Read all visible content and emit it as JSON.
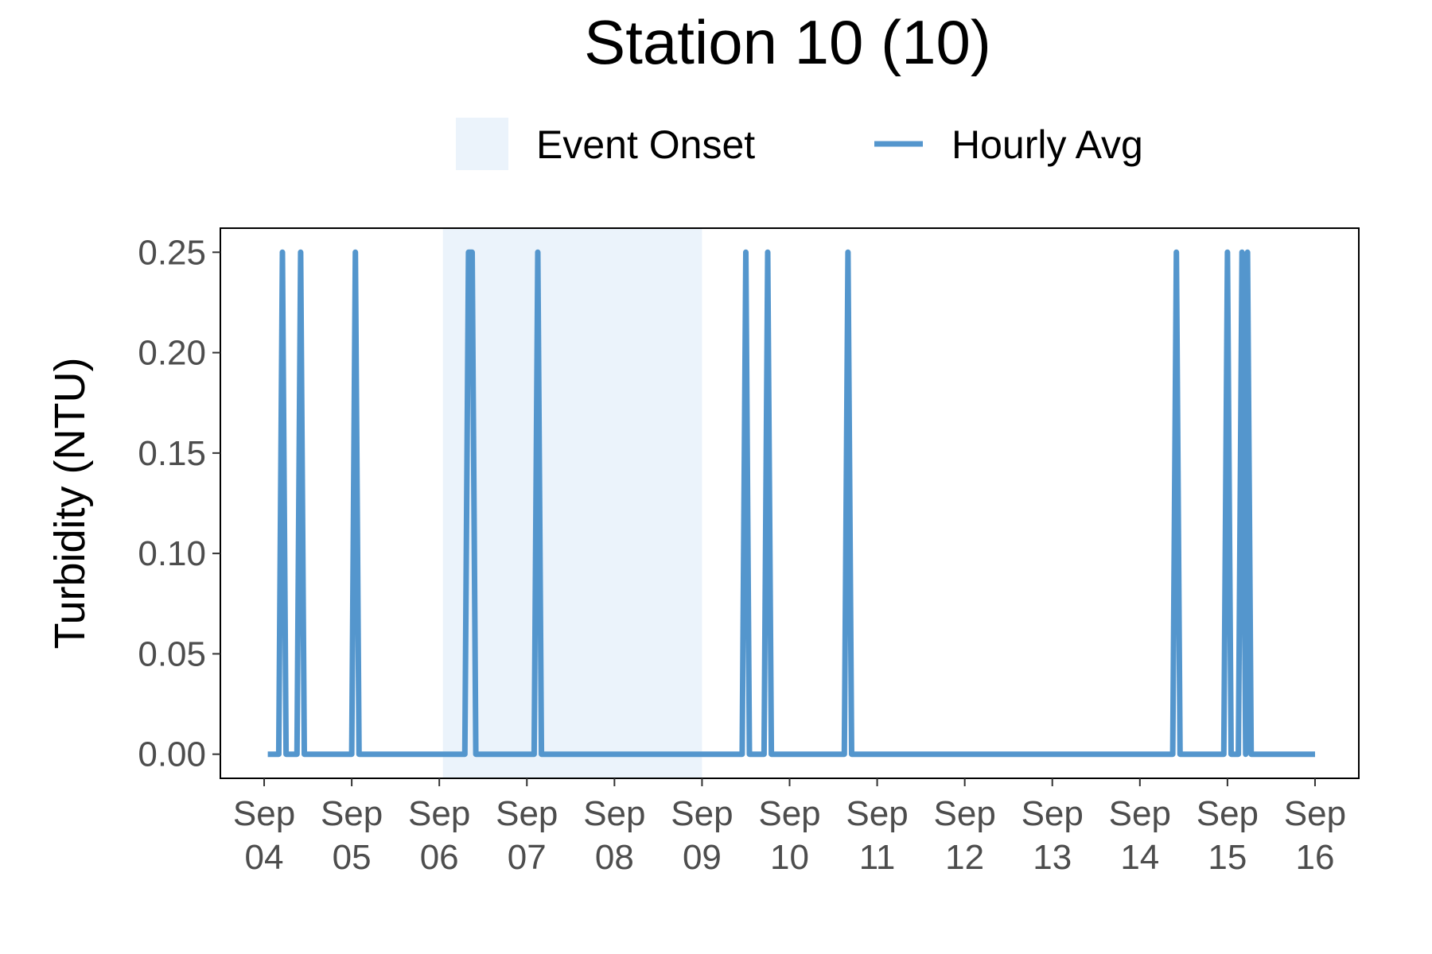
{
  "chart_data": {
    "type": "line",
    "title": "Station 10 (10)",
    "xlabel": "",
    "ylabel": "Turbidity (NTU)",
    "xlim": [
      "2023-09-03T12:00",
      "2023-09-16T12:00"
    ],
    "ylim": [
      -0.012,
      0.262
    ],
    "grid": false,
    "legend_position": "top",
    "legend": [
      {
        "name": "Event Onset",
        "kind": "band",
        "color": "#ebf3fb"
      },
      {
        "name": "Hourly Avg",
        "kind": "line",
        "color": "#5496cd"
      }
    ],
    "yticks": [
      {
        "value": 0.0,
        "label": "0.00"
      },
      {
        "value": 0.05,
        "label": "0.05"
      },
      {
        "value": 0.1,
        "label": "0.10"
      },
      {
        "value": 0.15,
        "label": "0.15"
      },
      {
        "value": 0.2,
        "label": "0.20"
      },
      {
        "value": 0.25,
        "label": "0.25"
      }
    ],
    "xticks": [
      {
        "value": "2023-09-04",
        "label": [
          "Sep",
          "04"
        ]
      },
      {
        "value": "2023-09-05",
        "label": [
          "Sep",
          "05"
        ]
      },
      {
        "value": "2023-09-06",
        "label": [
          "Sep",
          "06"
        ]
      },
      {
        "value": "2023-09-07",
        "label": [
          "Sep",
          "07"
        ]
      },
      {
        "value": "2023-09-08",
        "label": [
          "Sep",
          "08"
        ]
      },
      {
        "value": "2023-09-09",
        "label": [
          "Sep",
          "09"
        ]
      },
      {
        "value": "2023-09-10",
        "label": [
          "Sep",
          "10"
        ]
      },
      {
        "value": "2023-09-11",
        "label": [
          "Sep",
          "11"
        ]
      },
      {
        "value": "2023-09-12",
        "label": [
          "Sep",
          "12"
        ]
      },
      {
        "value": "2023-09-13",
        "label": [
          "Sep",
          "13"
        ]
      },
      {
        "value": "2023-09-14",
        "label": [
          "Sep",
          "14"
        ]
      },
      {
        "value": "2023-09-15",
        "label": [
          "Sep",
          "15"
        ]
      },
      {
        "value": "2023-09-16",
        "label": [
          "Sep",
          "16"
        ]
      }
    ],
    "event_band": {
      "name": "Event Onset",
      "start": "2023-09-06T01:00",
      "end": "2023-09-09T00:00",
      "color": "#ebf3fb"
    },
    "series": [
      {
        "name": "Hourly Avg",
        "color": "#5496cd",
        "points": [
          [
            "2023-09-04T01:00",
            0.0
          ],
          [
            "2023-09-04T04:00",
            0.0
          ],
          [
            "2023-09-04T05:00",
            0.25
          ],
          [
            "2023-09-04T06:00",
            0.0
          ],
          [
            "2023-09-04T09:00",
            0.0
          ],
          [
            "2023-09-04T10:00",
            0.25
          ],
          [
            "2023-09-04T11:00",
            0.0
          ],
          [
            "2023-09-05T00:00",
            0.0
          ],
          [
            "2023-09-05T01:00",
            0.25
          ],
          [
            "2023-09-05T02:00",
            0.0
          ],
          [
            "2023-09-06T07:00",
            0.0
          ],
          [
            "2023-09-06T08:00",
            0.25
          ],
          [
            "2023-09-06T09:00",
            0.25
          ],
          [
            "2023-09-06T10:00",
            0.0
          ],
          [
            "2023-09-07T02:00",
            0.0
          ],
          [
            "2023-09-07T03:00",
            0.25
          ],
          [
            "2023-09-07T04:00",
            0.0
          ],
          [
            "2023-09-09T11:00",
            0.0
          ],
          [
            "2023-09-09T12:00",
            0.25
          ],
          [
            "2023-09-09T13:00",
            0.0
          ],
          [
            "2023-09-09T17:00",
            0.0
          ],
          [
            "2023-09-09T18:00",
            0.25
          ],
          [
            "2023-09-09T19:00",
            0.0
          ],
          [
            "2023-09-10T15:00",
            0.0
          ],
          [
            "2023-09-10T16:00",
            0.25
          ],
          [
            "2023-09-10T17:00",
            0.0
          ],
          [
            "2023-09-14T09:00",
            0.0
          ],
          [
            "2023-09-14T10:00",
            0.25
          ],
          [
            "2023-09-14T11:00",
            0.0
          ],
          [
            "2023-09-14T23:00",
            0.0
          ],
          [
            "2023-09-15T00:00",
            0.25
          ],
          [
            "2023-09-15T01:00",
            0.0
          ],
          [
            "2023-09-15T03:00",
            0.0
          ],
          [
            "2023-09-15T04:00",
            0.25
          ],
          [
            "2023-09-15T05:00",
            0.0
          ],
          [
            "2023-09-15T05:30",
            0.25
          ],
          [
            "2023-09-15T06:30",
            0.0
          ],
          [
            "2023-09-16T00:00",
            0.0
          ]
        ]
      }
    ]
  }
}
